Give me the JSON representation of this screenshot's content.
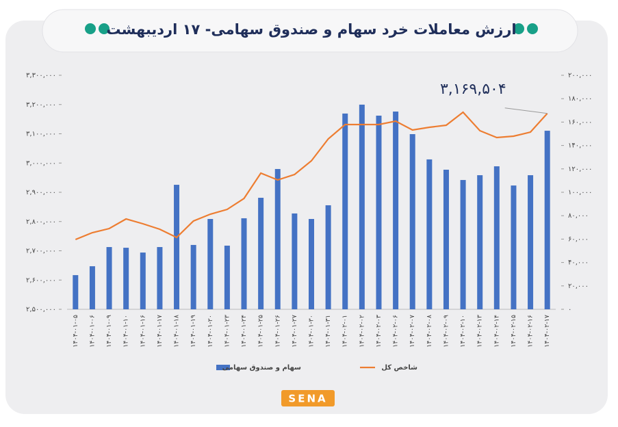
{
  "chart_data": {
    "type": "combo",
    "title": "ارزش معاملات خرد سهام و صندوق سهامی- ۱۷ اردیبهشت",
    "categories": [
      "۱۴۰۴-۰۱-۰۵",
      "۱۴۰۴-۰۱-۰۶",
      "۱۴۰۴-۰۱-۰۹",
      "۱۴۰۴-۰۱-۱۰",
      "۱۴۰۴-۰۱-۱۶",
      "۱۴۰۴-۰۱-۱۷",
      "۱۴۰۴-۰۱-۱۸",
      "۱۴۰۴-۰۱-۱۹",
      "۱۴۰۴-۰۱-۲۰",
      "۱۴۰۴-۰۱-۲۳",
      "۱۴۰۴-۰۱-۲۴",
      "۱۴۰۴-۰۱-۲۵",
      "۱۴۰۴-۰۱-۲۶",
      "۱۴۰۴-۰۱-۲۷",
      "۱۴۰۴-۰۱-۳۰",
      "۱۴۰۴-۰۱-۳۱",
      "۱۴۰۴-۰۲-۰۱",
      "۱۴۰۴-۰۲-۰۲",
      "۱۴۰۴-۰۲-۰۳",
      "۱۴۰۴-۰۲-۰۶",
      "۱۴۰۴-۰۲-۰۷",
      "۱۴۰۴-۰۲-۰۸",
      "۱۴۰۴-۰۲-۰۹",
      "۱۴۰۴-۰۲-۱۰",
      "۱۴۰۴-۰۲-۱۳",
      "۱۴۰۴-۰۲-۱۴",
      "۱۴۰۴-۰۲-۱۵",
      "۱۴۰۴-۰۲-۱۶",
      "۱۴۰۴-۰۲-۱۷"
    ],
    "series": [
      {
        "name": "سهام و صندوق سهامی",
        "type": "bar",
        "axis": "y2",
        "color": "#4472c4",
        "values": [
          29200,
          36800,
          53200,
          52600,
          48500,
          53200,
          106400,
          55000,
          77200,
          54400,
          77800,
          95300,
          119900,
          81900,
          77200,
          88900,
          167300,
          174900,
          165500,
          169000,
          149700,
          128100,
          119300,
          110500,
          114600,
          122200,
          105800,
          114600,
          152600
        ]
      },
      {
        "name": "شاخص کل",
        "type": "line",
        "color": "#ed7d31",
        "values": [
          2738600,
          2762000,
          2776000,
          2808800,
          2792400,
          2773700,
          2745600,
          2801800,
          2825100,
          2841500,
          2878900,
          2965500,
          2942100,
          2960800,
          3007600,
          3082500,
          3131600,
          3131600,
          3131600,
          3143300,
          3112900,
          3122200,
          3129200,
          3173700,
          3110500,
          3087100,
          3091800,
          3105800,
          3169504
        ],
        "value_labels": [
          null,
          null,
          null,
          null,
          null,
          null,
          null,
          null,
          null,
          null,
          null,
          null,
          null,
          null,
          null,
          null,
          null,
          null,
          null,
          null,
          null,
          null,
          null,
          null,
          null,
          null,
          null,
          null,
          "۳,۱۶۹,۵۰۴"
        ]
      }
    ],
    "ylim": [
      2500000,
      3300000
    ],
    "yticks": [
      {
        "value": 2500000,
        "label": "۲,۵۰۰,۰۰۰"
      },
      {
        "value": 2600000,
        "label": "۲,۶۰۰,۰۰۰"
      },
      {
        "value": 2700000,
        "label": "۲,۷۰۰,۰۰۰"
      },
      {
        "value": 2800000,
        "label": "۲,۸۰۰,۰۰۰"
      },
      {
        "value": 2900000,
        "label": "۲,۹۰۰,۰۰۰"
      },
      {
        "value": 3000000,
        "label": "۳,۰۰۰,۰۰۰"
      },
      {
        "value": 3100000,
        "label": "۳,۱۰۰,۰۰۰"
      },
      {
        "value": 3200000,
        "label": "۳,۲۰۰,۰۰۰"
      },
      {
        "value": 3300000,
        "label": "۳,۳۰۰,۰۰۰"
      }
    ],
    "y2lim": [
      0,
      200000
    ],
    "y2ticks": [
      {
        "value": 0,
        "label": "۰"
      },
      {
        "value": 20000,
        "label": "۲۰,۰۰۰"
      },
      {
        "value": 40000,
        "label": "۴۰,۰۰۰"
      },
      {
        "value": 60000,
        "label": "۶۰,۰۰۰"
      },
      {
        "value": 80000,
        "label": "۸۰,۰۰۰"
      },
      {
        "value": 100000,
        "label": "۱۰۰,۰۰۰"
      },
      {
        "value": 120000,
        "label": "۱۲۰,۰۰۰"
      },
      {
        "value": 140000,
        "label": "۱۴۰,۰۰۰"
      },
      {
        "value": 160000,
        "label": "۱۶۰,۰۰۰"
      },
      {
        "value": 180000,
        "label": "۱۸۰,۰۰۰"
      },
      {
        "value": 200000,
        "label": "۲۰۰,۰۰۰"
      }
    ],
    "grid": false,
    "logo": "SENA"
  }
}
